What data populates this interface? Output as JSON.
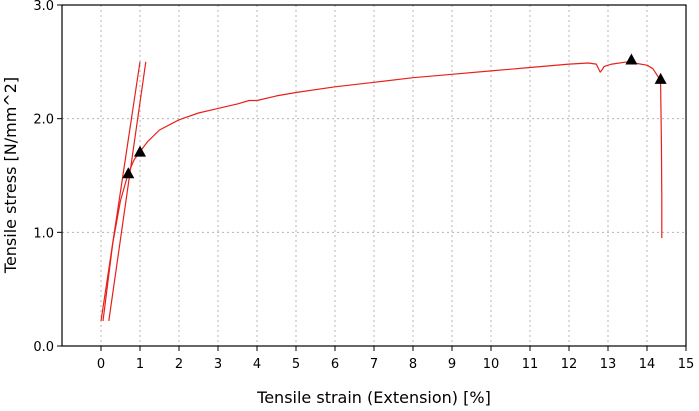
{
  "chart_data": {
    "type": "line",
    "xlabel": "Tensile strain (Extension) [%]",
    "ylabel": "Tensile stress [N/mm^2]",
    "xlim": [
      -1,
      15
    ],
    "ylim": [
      0,
      3
    ],
    "x_ticks": [
      0,
      1,
      2,
      3,
      4,
      5,
      6,
      7,
      8,
      9,
      10,
      11,
      12,
      13,
      14,
      15
    ],
    "x_tick_labels": [
      "0",
      "1",
      "2",
      "3",
      "4",
      "5",
      "6",
      "7",
      "8",
      "9",
      "10",
      "11",
      "12",
      "13",
      "14",
      "15"
    ],
    "y_ticks": [
      0,
      1,
      2,
      3
    ],
    "y_tick_labels": [
      "0.0",
      "1.0",
      "2.0",
      "3.0"
    ],
    "grid": true,
    "line_color": "#e8201b",
    "marker_color": "#000000",
    "series": [
      {
        "x": [
          0.05,
          0.3,
          0.5,
          0.7,
          0.85,
          1.0,
          1.2,
          1.5,
          2.0,
          2.5,
          3.0,
          3.5,
          3.8,
          4.0,
          4.5,
          5.0,
          6.0,
          7.0,
          8.0,
          9.0,
          10.0,
          11.0,
          12.0,
          12.5,
          12.7,
          12.8,
          12.85,
          12.9,
          13.1,
          13.5,
          14.0,
          14.15,
          14.3,
          14.35,
          14.37,
          14.38,
          14.38
        ],
        "y": [
          0.22,
          0.9,
          1.28,
          1.52,
          1.64,
          1.71,
          1.8,
          1.9,
          1.99,
          2.05,
          2.09,
          2.13,
          2.16,
          2.16,
          2.2,
          2.23,
          2.28,
          2.32,
          2.36,
          2.39,
          2.42,
          2.45,
          2.48,
          2.49,
          2.48,
          2.41,
          2.43,
          2.46,
          2.48,
          2.5,
          2.47,
          2.44,
          2.36,
          2.31,
          1.8,
          1.3,
          0.95
        ]
      },
      {
        "x": [
          0.0,
          1.0
        ],
        "y": [
          0.22,
          2.5
        ]
      },
      {
        "x": [
          0.2,
          1.15
        ],
        "y": [
          0.22,
          2.5
        ]
      }
    ],
    "markers": [
      {
        "x": 0.7,
        "y": 1.52,
        "shape": "triangle"
      },
      {
        "x": 1.0,
        "y": 1.71,
        "shape": "triangle"
      },
      {
        "x": 13.6,
        "y": 2.52,
        "shape": "triangle"
      },
      {
        "x": 14.35,
        "y": 2.35,
        "shape": "triangle"
      }
    ]
  }
}
